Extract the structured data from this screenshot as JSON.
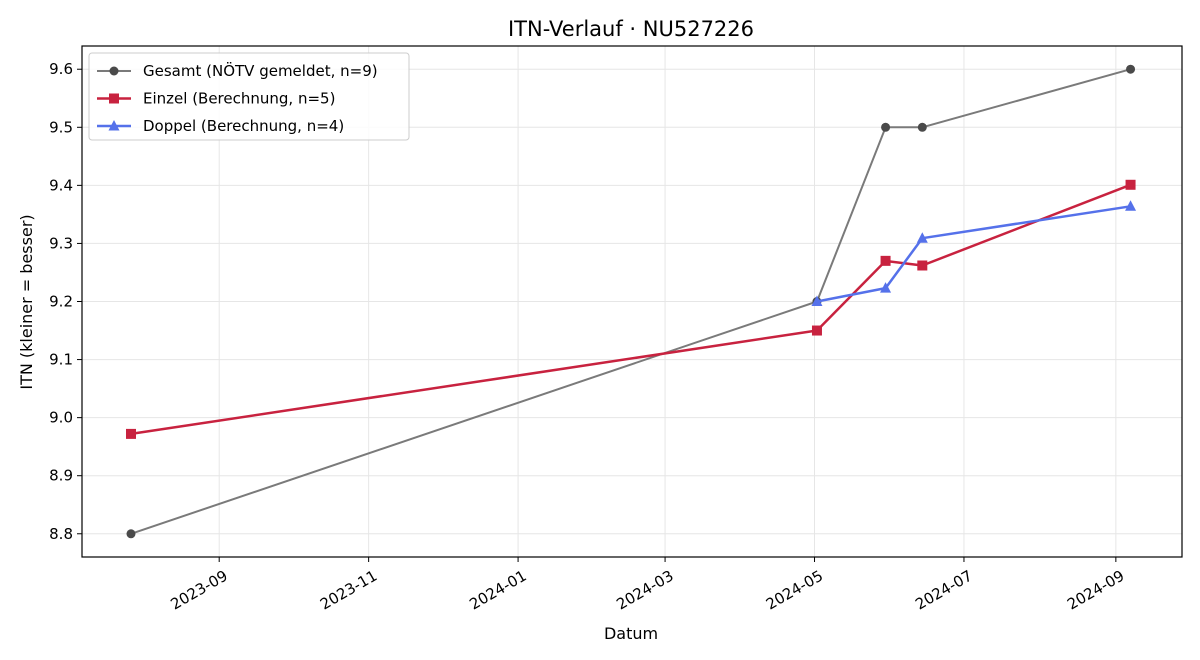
{
  "chart_data": {
    "type": "line",
    "title": "ITN-Verlauf · NU527226",
    "xlabel": "Datum",
    "ylabel": "ITN  (kleiner = besser)",
    "x_axis": "date",
    "xlim": [
      "2023-07-07",
      "2024-09-28"
    ],
    "ylim": [
      8.76,
      9.64
    ],
    "x_ticks": [
      {
        "date": "2023-09-01",
        "label": "2023-09"
      },
      {
        "date": "2023-11-01",
        "label": "2023-11"
      },
      {
        "date": "2024-01-01",
        "label": "2024-01"
      },
      {
        "date": "2024-03-01",
        "label": "2024-03"
      },
      {
        "date": "2024-05-01",
        "label": "2024-05"
      },
      {
        "date": "2024-07-01",
        "label": "2024-07"
      },
      {
        "date": "2024-09-01",
        "label": "2024-09"
      }
    ],
    "y_ticks": [
      8.8,
      8.9,
      9.0,
      9.1,
      9.2,
      9.3,
      9.4,
      9.5,
      9.6
    ],
    "grid": true,
    "legend_position": "top-left",
    "series": [
      {
        "name": "Gesamt (NÖTV gemeldet, n=9)",
        "color": "#7a7a7a",
        "marker_color": "#4a4a4a",
        "marker": "circle",
        "points": [
          {
            "x": "2023-07-27",
            "y": 8.8
          },
          {
            "x": "2024-05-02",
            "y": 9.2
          },
          {
            "x": "2024-05-30",
            "y": 9.5
          },
          {
            "x": "2024-06-14",
            "y": 9.5
          },
          {
            "x": "2024-09-07",
            "y": 9.6
          }
        ]
      },
      {
        "name": "Einzel (Berechnung, n=5)",
        "color": "#c8223f",
        "marker_color": "#c8223f",
        "marker": "square",
        "points": [
          {
            "x": "2023-07-27",
            "y": 8.972
          },
          {
            "x": "2024-05-02",
            "y": 9.15
          },
          {
            "x": "2024-05-30",
            "y": 9.27
          },
          {
            "x": "2024-06-14",
            "y": 9.262
          },
          {
            "x": "2024-09-07",
            "y": 9.401
          }
        ]
      },
      {
        "name": "Doppel (Berechnung, n=4)",
        "color": "#5571ea",
        "marker_color": "#5571ea",
        "marker": "triangle",
        "points": [
          {
            "x": "2024-05-02",
            "y": 9.2
          },
          {
            "x": "2024-05-30",
            "y": 9.223
          },
          {
            "x": "2024-06-14",
            "y": 9.309
          },
          {
            "x": "2024-09-07",
            "y": 9.364
          }
        ]
      }
    ]
  }
}
